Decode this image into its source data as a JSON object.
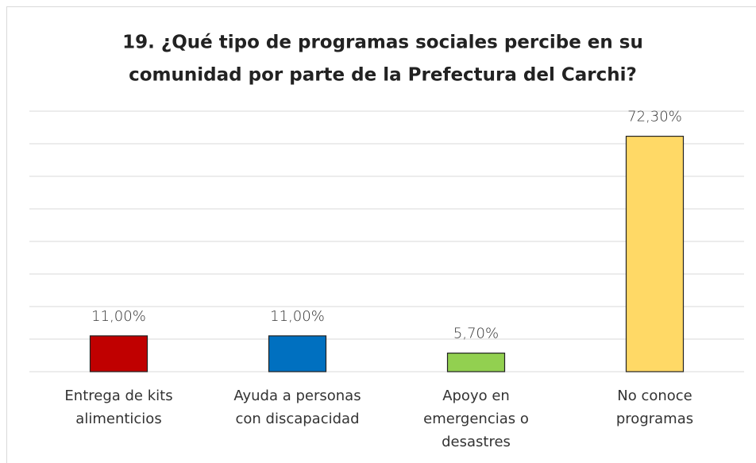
{
  "chart_data": {
    "type": "bar",
    "title": [
      "19. ¿Qué tipo de programas sociales percibe en su",
      "comunidad por parte de la Prefectura del Carchi?"
    ],
    "categories": [
      [
        "Entrega de kits",
        "alimenticios"
      ],
      [
        "Ayuda a personas",
        "con discapacidad"
      ],
      [
        "Apoyo en",
        "emergencias o",
        "desastres"
      ],
      [
        "No conoce",
        "programas"
      ]
    ],
    "values": [
      11.0,
      11.0,
      5.7,
      72.3
    ],
    "value_labels": [
      "11,00%",
      "11,00%",
      "5,70%",
      "72,30%"
    ],
    "colors": [
      "#c00000",
      "#0070c0",
      "#92d050",
      "#ffd966"
    ],
    "ylim": [
      0,
      80
    ],
    "yticks": [
      0,
      10,
      20,
      30,
      40,
      50,
      60,
      70,
      80
    ],
    "grid": true
  }
}
